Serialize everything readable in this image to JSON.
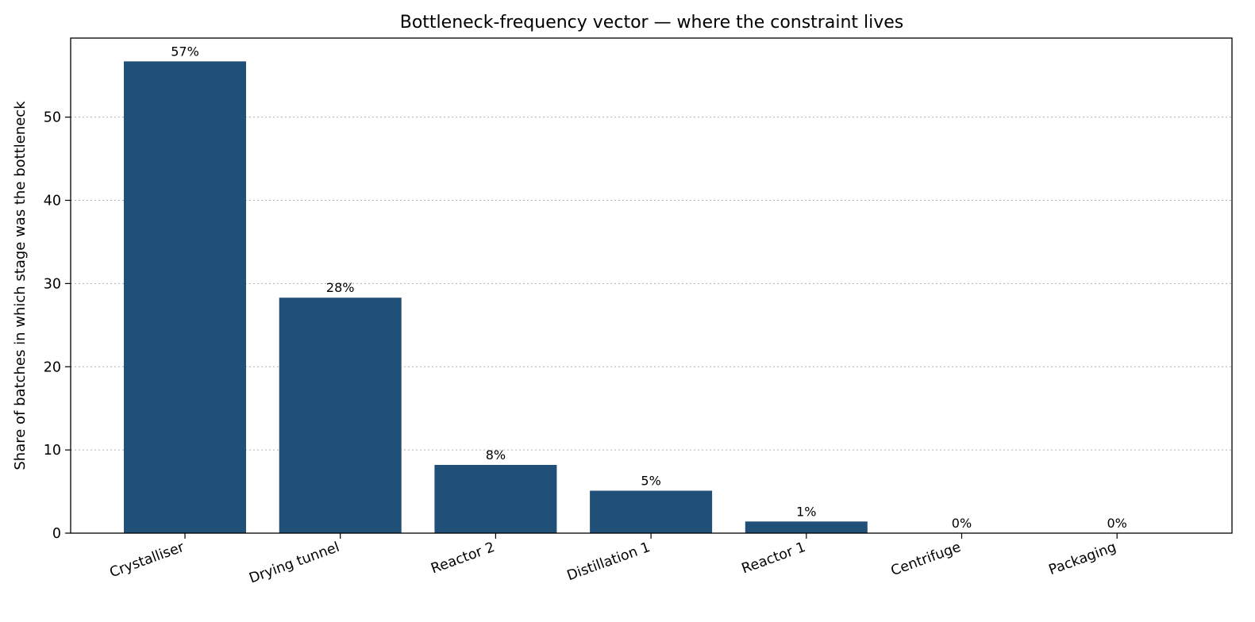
{
  "chart_data": {
    "type": "bar",
    "title": "Bottleneck-frequency vector — where the constraint lives",
    "xlabel": "",
    "ylabel": "Share of batches in which stage was the bottleneck",
    "categories": [
      "Crystalliser",
      "Drying tunnel",
      "Reactor 2",
      "Distillation 1",
      "Reactor 1",
      "Centrifuge",
      "Packaging"
    ],
    "values": [
      56.7,
      28.3,
      8.2,
      5.1,
      1.4,
      0.0,
      0.0
    ],
    "data_labels": [
      "57%",
      "28%",
      "8%",
      "5%",
      "1%",
      "0%",
      "0%"
    ],
    "ylim": [
      0,
      59.5
    ],
    "yticks": [
      0,
      10,
      20,
      30,
      40,
      50
    ],
    "grid": "y-dotted",
    "bar_color": "#204f77",
    "grid_color": "#b0b0b0",
    "x_tick_rotation_deg": -20
  }
}
